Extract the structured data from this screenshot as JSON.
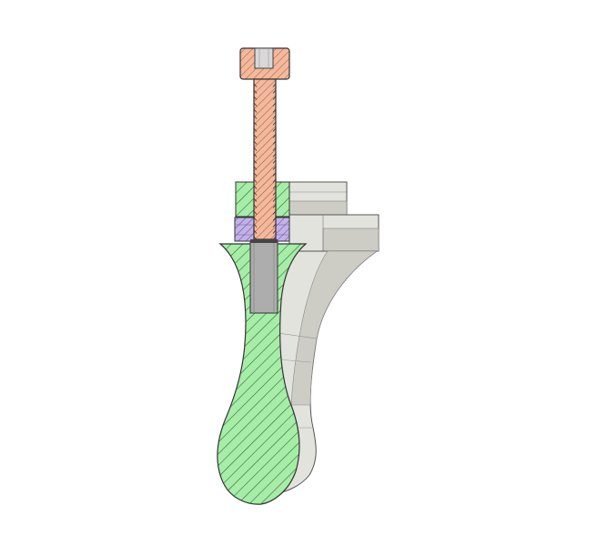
{
  "view": {
    "mode": "section-view",
    "background_color": "#ffffff"
  },
  "components": {
    "screw": {
      "icon": "socket-head-cap-screw-icon",
      "fill": "#f5b89a",
      "hatch": "#8a5a44"
    },
    "nut": {
      "icon": "hex-nut-icon",
      "fill": "#c3b2ea",
      "hatch": "#5d4c8c"
    },
    "body": {
      "icon": "handle-body-icon",
      "fill": "#a6eda8",
      "hatch": "#2f5a30"
    },
    "bracket": {
      "icon": "bracket-icon",
      "fill": "#e3e3dd",
      "shade": "#cdcdc6"
    },
    "insert": {
      "icon": "threaded-insert-icon",
      "fill": "#adadad"
    }
  }
}
